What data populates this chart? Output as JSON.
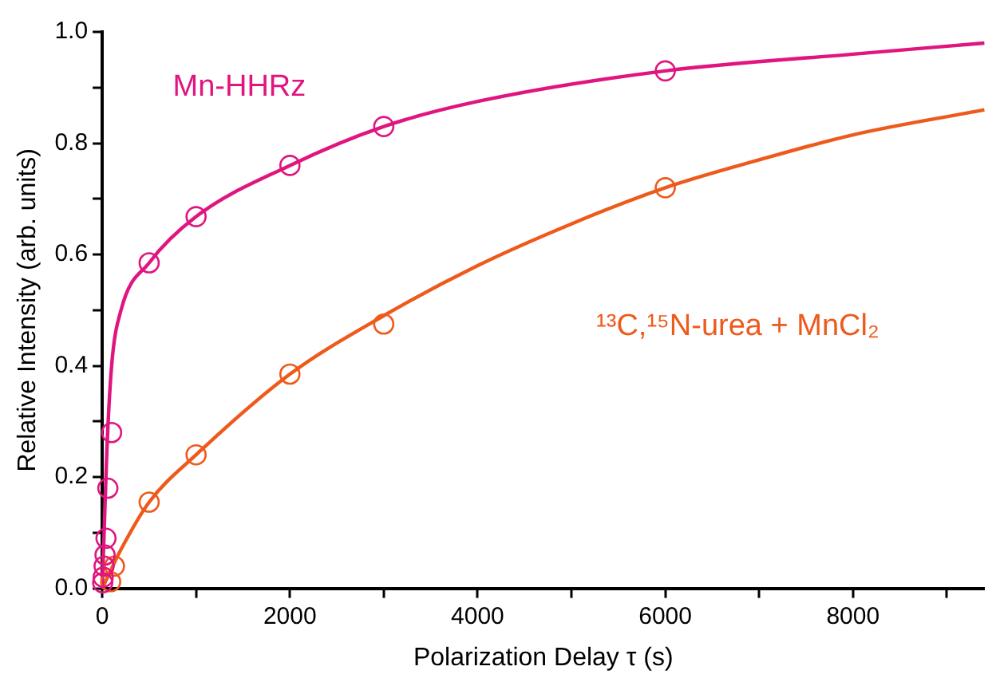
{
  "chart_data": {
    "type": "scatter",
    "xlabel": "Polarization Delay τ (s)",
    "ylabel": "Relative Intensity (arb. units)",
    "xlim": [
      0,
      9400
    ],
    "ylim": [
      0,
      1.0
    ],
    "xticks": [
      0,
      {
        "value": 1000,
        "label": null
      },
      2000,
      {
        "value": 3000,
        "label": null
      },
      4000,
      {
        "value": 5000,
        "label": null
      },
      6000,
      {
        "value": 7000,
        "label": null
      },
      8000,
      {
        "value": 9000,
        "label": null
      }
    ],
    "yticks": [
      {
        "value": 0,
        "label": "0.0"
      },
      {
        "value": 0.1,
        "label": null
      },
      {
        "value": 0.2,
        "label": "0.2"
      },
      {
        "value": 0.3,
        "label": null
      },
      {
        "value": 0.4,
        "label": "0.4"
      },
      {
        "value": 0.5,
        "label": null
      },
      {
        "value": 0.6,
        "label": "0.6"
      },
      {
        "value": 0.7,
        "label": null
      },
      {
        "value": 0.8,
        "label": "0.8"
      },
      {
        "value": 0.9,
        "label": null
      },
      {
        "value": 1.0,
        "label": "1.0"
      }
    ],
    "grid": false,
    "legend": false,
    "marker": "circle",
    "series": [
      {
        "name": "Mn-HHRz",
        "color": "#e0157f",
        "x": [
          5,
          10,
          20,
          30,
          40,
          60,
          100,
          500,
          1000,
          2000,
          3000,
          6000
        ],
        "values": [
          0.01,
          0.02,
          0.04,
          0.06,
          0.09,
          0.18,
          0.28,
          0.585,
          0.668,
          0.76,
          0.83,
          0.93
        ]
      },
      {
        "name": "¹³C,¹⁵N-urea + MnCl₂",
        "color": "#ee5a1c",
        "x": [
          90,
          130,
          500,
          1000,
          2000,
          3000,
          6000
        ],
        "values": [
          0.012,
          0.04,
          0.155,
          0.24,
          0.385,
          0.475,
          0.72
        ]
      },
      {
        "type": "line",
        "color": "#e0157f",
        "marker": "none",
        "x": [
          0,
          20,
          50,
          100,
          200,
          500,
          1000,
          2000,
          3000,
          4000,
          6000,
          8000,
          9400
        ],
        "values": [
          0,
          0.1,
          0.25,
          0.4,
          0.5,
          0.585,
          0.668,
          0.76,
          0.83,
          0.875,
          0.93,
          0.96,
          0.98
        ]
      },
      {
        "type": "line",
        "color": "#ee5a1c",
        "marker": "none",
        "x": [
          0,
          200,
          500,
          1000,
          2000,
          3000,
          4000,
          5000,
          6000,
          7000,
          8000,
          9400
        ],
        "values": [
          0,
          0.07,
          0.155,
          0.24,
          0.385,
          0.49,
          0.58,
          0.655,
          0.72,
          0.77,
          0.815,
          0.86
        ]
      }
    ]
  }
}
